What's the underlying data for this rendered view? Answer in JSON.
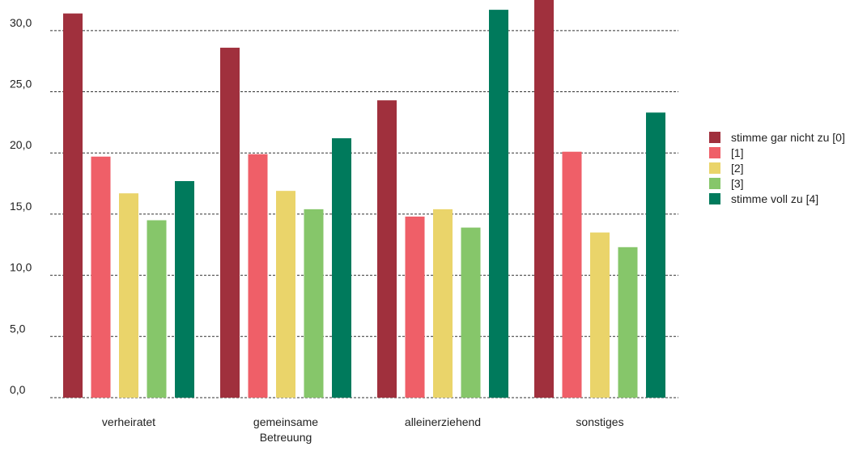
{
  "chart_data": {
    "type": "bar",
    "categories": [
      "verheiratet",
      "gemeinsame Betreuung",
      "alleinerziehend",
      "sonstiges"
    ],
    "series": [
      {
        "name": "stimme gar nicht zu [0]",
        "color": "#a0303d",
        "values": [
          31.4,
          28.6,
          24.3,
          33.0
        ]
      },
      {
        "name": "[1]",
        "color": "#ef5f68",
        "values": [
          19.7,
          19.9,
          14.8,
          20.1
        ]
      },
      {
        "name": "[2]",
        "color": "#ead46a",
        "values": [
          16.7,
          16.9,
          15.4,
          13.5
        ]
      },
      {
        "name": "[3]",
        "color": "#86c66a",
        "values": [
          14.5,
          15.4,
          13.9,
          12.3
        ]
      },
      {
        "name": "stimme voll zu [4]",
        "color": "#007a5c",
        "values": [
          17.7,
          21.2,
          31.7,
          23.3
        ]
      }
    ],
    "ylim": [
      0,
      32.5
    ],
    "yticks": [
      {
        "value": 0,
        "label": "0,0"
      },
      {
        "value": 5,
        "label": "5,0"
      },
      {
        "value": 10,
        "label": "10,0"
      },
      {
        "value": 15,
        "label": "15,0"
      },
      {
        "value": 20,
        "label": "20,0"
      },
      {
        "value": 25,
        "label": "25,0"
      },
      {
        "value": 30,
        "label": "30,0"
      }
    ],
    "grid": true,
    "legend": "right"
  }
}
